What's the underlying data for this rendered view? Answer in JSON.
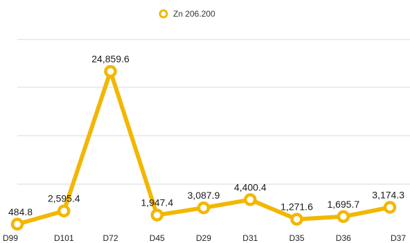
{
  "chart_data": {
    "type": "line",
    "categories": [
      "D99",
      "D101",
      "D72",
      "D45",
      "D29",
      "D31",
      "D35",
      "D36",
      "D37"
    ],
    "series": [
      {
        "name": "Zn 206.200",
        "values": [
          484.8,
          2595.4,
          24859.6,
          1947.4,
          3087.9,
          4400.4,
          1271.6,
          1695.7,
          3174.3
        ],
        "labels": [
          "484.8",
          "2,595.4",
          "24,859.6",
          "1,947.4",
          "3,087.9",
          "4,400.4",
          "1,271.6",
          "1,695.7",
          "3,174.3"
        ],
        "color": "#F2B700"
      }
    ],
    "legend_position": "top-center",
    "grid": true,
    "xlabel": "",
    "ylabel": ""
  }
}
